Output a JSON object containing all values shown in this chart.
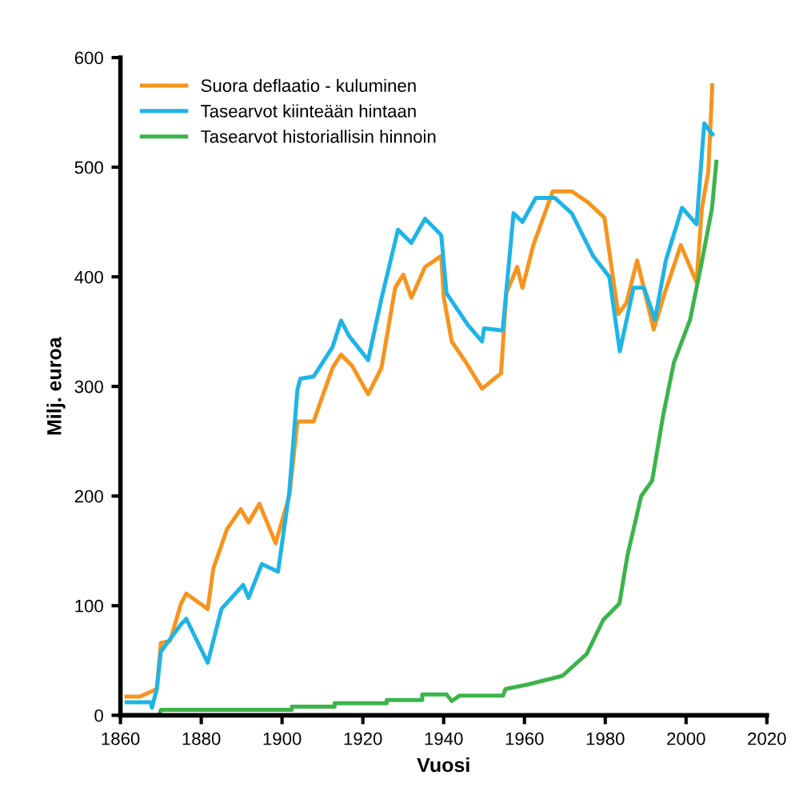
{
  "chart_data": {
    "type": "line",
    "xlabel": "Vuosi",
    "ylabel": "Milj. euroa",
    "xlim": [
      1860,
      2020
    ],
    "xticks": [
      1860,
      1880,
      1900,
      1920,
      1940,
      1960,
      1980,
      2000,
      2020
    ],
    "ylim": [
      0,
      600
    ],
    "yticks": [
      0,
      100,
      200,
      300,
      400,
      500,
      600
    ],
    "grid": false,
    "legend": "top left",
    "line_style": "solid",
    "marker": "none",
    "series": [
      {
        "name": "Suora deflaatio - kuluminen",
        "color": "#f7941d",
        "x": [
          1861.5,
          1864.8,
          1869,
          1870,
          1872.3,
          1875,
          1876.3,
          1881.6,
          1883,
          1886.4,
          1889.8,
          1891.7,
          1894.4,
          1898.4,
          1901.8,
          1903.8,
          1907.8,
          1912.5,
          1914.6,
          1917.3,
          1921.3,
          1924.6,
          1928,
          1930,
          1932,
          1935.4,
          1939.4,
          1940,
          1942,
          1945.5,
          1949.5,
          1954.2,
          1955.5,
          1958.2,
          1959.5,
          1962.2,
          1967,
          1971.7,
          1975.7,
          1979.8,
          1983.2,
          1985.2,
          1987.9,
          1992,
          1994.7,
          1998.7,
          2002.6,
          2003.9,
          2005.5,
          2006.5
        ],
        "values": [
          17,
          17,
          24,
          66,
          68,
          102,
          111,
          97,
          134,
          170,
          188,
          176,
          193,
          157,
          200,
          268,
          268,
          317,
          329,
          319,
          293,
          317,
          390,
          402,
          381,
          409,
          419,
          382,
          341,
          322,
          298,
          312,
          385,
          409,
          390,
          429,
          478,
          478,
          468,
          454,
          366,
          376,
          415,
          352,
          385,
          429,
          395,
          462,
          496,
          575
        ]
      },
      {
        "name": "Tasearvot kiinteään hintaan",
        "color": "#1eb4e6",
        "x": [
          1861.5,
          1867.5,
          1867.8,
          1869,
          1870,
          1875,
          1876.3,
          1881.6,
          1885,
          1890.4,
          1891.7,
          1895,
          1899,
          1901.8,
          1903.8,
          1904.5,
          1907.8,
          1912.5,
          1914.6,
          1916.6,
          1921.3,
          1924.6,
          1928.7,
          1932,
          1935.4,
          1939.4,
          1940.7,
          1946,
          1949.5,
          1950,
          1954.6,
          1957.3,
          1959.5,
          1962.8,
          1967.5,
          1971.7,
          1977,
          1981,
          1983.6,
          1987,
          1989.6,
          1992.3,
          1995,
          1999,
          2002.6,
          2004.5,
          2006.5
        ],
        "values": [
          12,
          12,
          7,
          24,
          58,
          83,
          88,
          48,
          97,
          119,
          107,
          138,
          131,
          204,
          297,
          307,
          309,
          336,
          360,
          346,
          324,
          380,
          443,
          431,
          453,
          438,
          385,
          356,
          341,
          353,
          351,
          458,
          450,
          472,
          472,
          458,
          419,
          400,
          332,
          390,
          390,
          361,
          415,
          463,
          448,
          540,
          530
        ]
      },
      {
        "name": "Tasearvot historiallisin hinnoin",
        "color": "#3cb44b",
        "x": [
          1861.5,
          1869.6,
          1870,
          1902.4,
          1902.4,
          1913,
          1913,
          1925.9,
          1925.9,
          1934.7,
          1934.7,
          1940.7,
          1942,
          1944,
          1954.7,
          1955.3,
          1960.7,
          1969.4,
          1975.4,
          1979.5,
          1983.5,
          1985.5,
          1988.9,
          1991.6,
          1994.3,
          1997,
          2001,
          2003.7,
          2006.4,
          2007.5
        ],
        "values": [
          0,
          0,
          5,
          5,
          8,
          8,
          11,
          11,
          14,
          14,
          19,
          19,
          13,
          18,
          18,
          24,
          28,
          36,
          56,
          87,
          102,
          146,
          200,
          214,
          273,
          322,
          361,
          410,
          462,
          505
        ]
      }
    ]
  }
}
